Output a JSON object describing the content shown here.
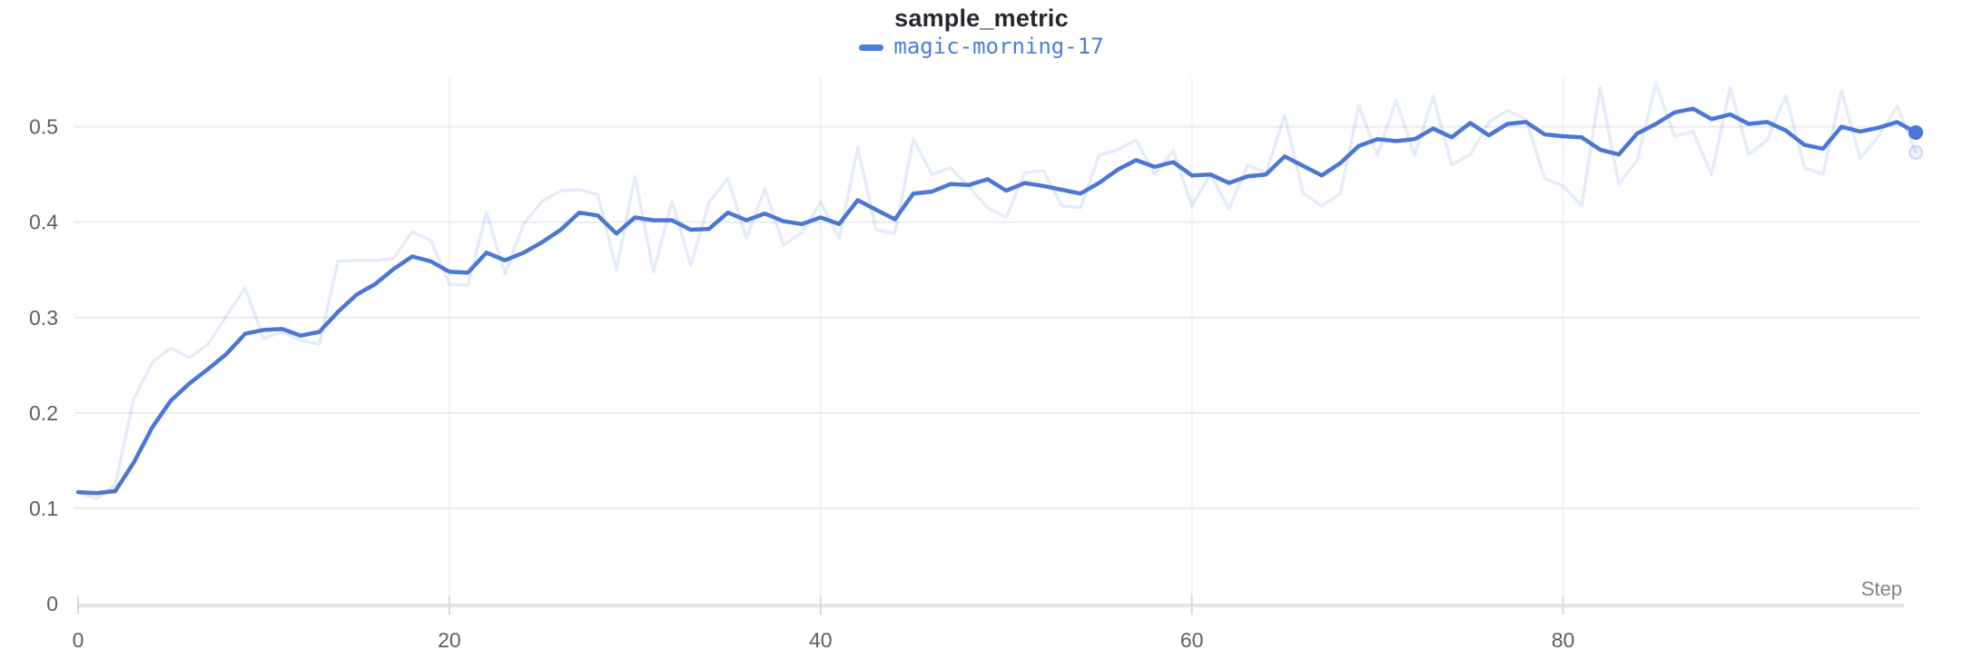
{
  "chart": {
    "title": "sample_metric",
    "legend_label": "magic-morning-17",
    "accent_color": "#4b7cd9",
    "x_axis_label": "Step"
  },
  "chart_data": {
    "type": "line",
    "title": "sample_metric",
    "xlabel": "Step",
    "ylabel": "",
    "grid": true,
    "legend_position": "top-center",
    "xlim": [
      0,
      99
    ],
    "ylim": [
      0,
      0.552
    ],
    "x_ticks": [
      0,
      20,
      40,
      60,
      80
    ],
    "y_ticks": [
      0,
      0.1,
      0.2,
      0.3,
      0.4,
      0.5
    ],
    "x": [
      0,
      1,
      2,
      3,
      4,
      5,
      6,
      7,
      8,
      9,
      10,
      11,
      12,
      13,
      14,
      15,
      16,
      17,
      18,
      19,
      20,
      21,
      22,
      23,
      24,
      25,
      26,
      27,
      28,
      29,
      30,
      31,
      32,
      33,
      34,
      35,
      36,
      37,
      38,
      39,
      40,
      41,
      42,
      43,
      44,
      45,
      46,
      47,
      48,
      49,
      50,
      51,
      52,
      53,
      54,
      55,
      56,
      57,
      58,
      59,
      60,
      61,
      62,
      63,
      64,
      65,
      66,
      67,
      68,
      69,
      70,
      71,
      72,
      73,
      74,
      75,
      76,
      77,
      78,
      79,
      80,
      81,
      82,
      83,
      84,
      85,
      86,
      87,
      88,
      89,
      90,
      91,
      92,
      93,
      94,
      95,
      96,
      97,
      98,
      99
    ],
    "series": [
      {
        "name": "magic-morning-17 (original)",
        "role": "raw",
        "color": "#4a77d4",
        "opacity": 0.15,
        "stroke_width": 3.5,
        "values": [
          0.117,
          0.11,
          0.125,
          0.215,
          0.253,
          0.268,
          0.258,
          0.272,
          0.302,
          0.331,
          0.278,
          0.285,
          0.276,
          0.272,
          0.359,
          0.36,
          0.36,
          0.362,
          0.39,
          0.381,
          0.335,
          0.334,
          0.41,
          0.346,
          0.398,
          0.422,
          0.433,
          0.434,
          0.429,
          0.35,
          0.448,
          0.348,
          0.422,
          0.355,
          0.421,
          0.446,
          0.383,
          0.435,
          0.376,
          0.389,
          0.421,
          0.383,
          0.478,
          0.392,
          0.388,
          0.487,
          0.45,
          0.457,
          0.437,
          0.415,
          0.405,
          0.452,
          0.454,
          0.417,
          0.415,
          0.47,
          0.476,
          0.486,
          0.45,
          0.475,
          0.417,
          0.45,
          0.414,
          0.46,
          0.452,
          0.512,
          0.43,
          0.417,
          0.43,
          0.522,
          0.47,
          0.528,
          0.47,
          0.532,
          0.46,
          0.471,
          0.505,
          0.517,
          0.508,
          0.446,
          0.438,
          0.417,
          0.541,
          0.44,
          0.465,
          0.546,
          0.49,
          0.495,
          0.45,
          0.541,
          0.471,
          0.486,
          0.533,
          0.457,
          0.45,
          0.538,
          0.467,
          0.49,
          0.522,
          0.473
        ]
      },
      {
        "name": "magic-morning-17",
        "role": "smoothed",
        "color": "#4a77d4",
        "opacity": 1,
        "stroke_width": 4.5,
        "values": [
          0.117,
          0.116,
          0.118,
          0.148,
          0.185,
          0.213,
          0.231,
          0.246,
          0.262,
          0.283,
          0.287,
          0.288,
          0.281,
          0.285,
          0.306,
          0.324,
          0.335,
          0.351,
          0.364,
          0.359,
          0.348,
          0.347,
          0.368,
          0.36,
          0.368,
          0.379,
          0.392,
          0.41,
          0.407,
          0.388,
          0.405,
          0.402,
          0.402,
          0.392,
          0.393,
          0.41,
          0.402,
          0.409,
          0.401,
          0.398,
          0.405,
          0.398,
          0.423,
          0.413,
          0.403,
          0.43,
          0.432,
          0.44,
          0.439,
          0.445,
          0.433,
          0.441,
          0.438,
          0.434,
          0.43,
          0.441,
          0.455,
          0.465,
          0.458,
          0.463,
          0.449,
          0.45,
          0.441,
          0.448,
          0.45,
          0.469,
          0.459,
          0.449,
          0.462,
          0.48,
          0.487,
          0.485,
          0.487,
          0.498,
          0.489,
          0.504,
          0.491,
          0.503,
          0.505,
          0.492,
          0.49,
          0.489,
          0.476,
          0.471,
          0.493,
          0.503,
          0.515,
          0.519,
          0.508,
          0.513,
          0.503,
          0.505,
          0.496,
          0.481,
          0.477,
          0.5,
          0.495,
          0.499,
          0.505,
          0.494
        ]
      }
    ],
    "colors": {
      "gridline": "#eaebed",
      "vertical_gridline": "#f1f2f4",
      "axis_baseline": "#e3e4e6",
      "tick_mark": "#d6d8da",
      "tick_label": "#596069",
      "axis_label": "#7f858e"
    }
  }
}
